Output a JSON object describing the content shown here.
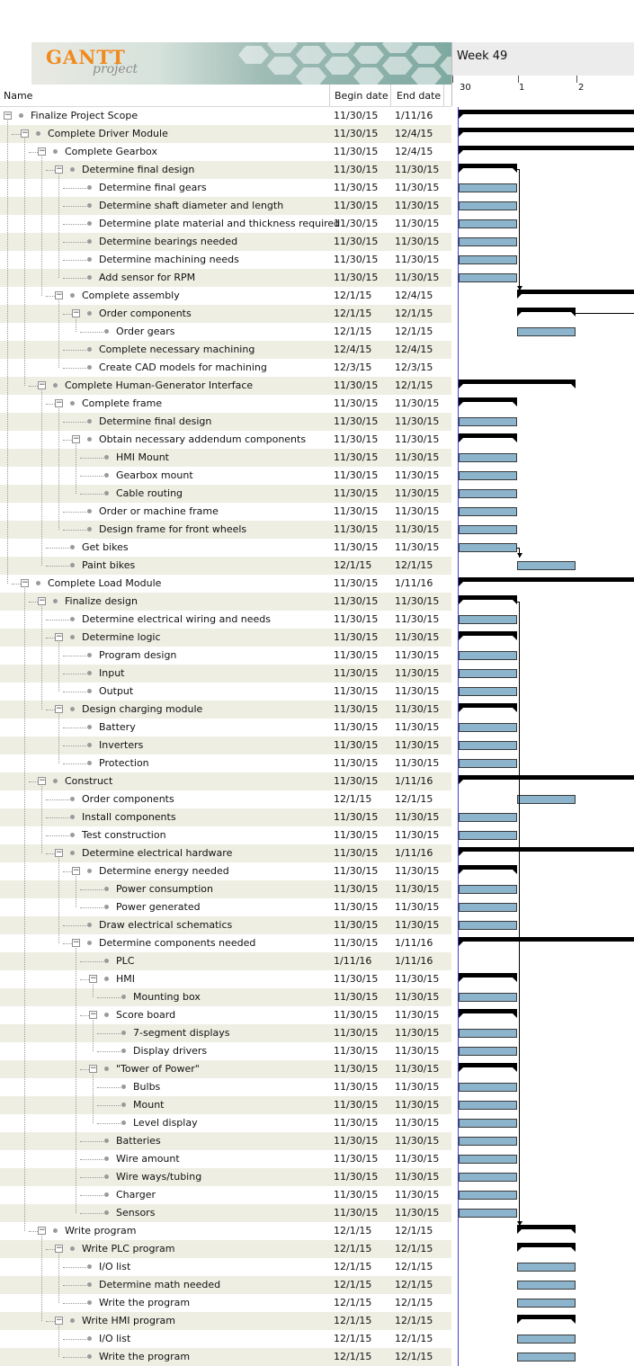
{
  "logo": {
    "brand": "GANTT",
    "sub": "project"
  },
  "columns": {
    "name": "Name",
    "begin": "Begin date",
    "end": "End date"
  },
  "timeline": {
    "week": "Week 49",
    "days": [
      "30",
      "1",
      "2"
    ]
  },
  "tasks": [
    {
      "name": "Finalize Project Scope",
      "begin": "11/30/15",
      "end": "1/11/16",
      "level": 0,
      "summary": true
    },
    {
      "name": "Complete Driver Module",
      "begin": "11/30/15",
      "end": "12/4/15",
      "level": 1,
      "summary": true
    },
    {
      "name": "Complete Gearbox",
      "begin": "11/30/15",
      "end": "12/4/15",
      "level": 2,
      "summary": true
    },
    {
      "name": "Determine final design",
      "begin": "11/30/15",
      "end": "11/30/15",
      "level": 3,
      "summary": true
    },
    {
      "name": "Determine final gears",
      "begin": "11/30/15",
      "end": "11/30/15",
      "level": 4
    },
    {
      "name": "Determine shaft diameter and length",
      "begin": "11/30/15",
      "end": "11/30/15",
      "level": 4
    },
    {
      "name": "Determine plate material and thickness required",
      "begin": "11/30/15",
      "end": "11/30/15",
      "level": 4
    },
    {
      "name": "Determine bearings needed",
      "begin": "11/30/15",
      "end": "11/30/15",
      "level": 4
    },
    {
      "name": "Determine machining needs",
      "begin": "11/30/15",
      "end": "11/30/15",
      "level": 4
    },
    {
      "name": "Add sensor for RPM",
      "begin": "11/30/15",
      "end": "11/30/15",
      "level": 4
    },
    {
      "name": "Complete assembly",
      "begin": "12/1/15",
      "end": "12/4/15",
      "level": 3,
      "summary": true
    },
    {
      "name": "Order components",
      "begin": "12/1/15",
      "end": "12/1/15",
      "level": 4,
      "summary": true
    },
    {
      "name": "Order gears",
      "begin": "12/1/15",
      "end": "12/1/15",
      "level": 5
    },
    {
      "name": "Complete necessary machining",
      "begin": "12/4/15",
      "end": "12/4/15",
      "level": 4
    },
    {
      "name": "Create CAD models for machining",
      "begin": "12/3/15",
      "end": "12/3/15",
      "level": 4
    },
    {
      "name": "Complete Human-Generator Interface",
      "begin": "11/30/15",
      "end": "12/1/15",
      "level": 2,
      "summary": true
    },
    {
      "name": "Complete frame",
      "begin": "11/30/15",
      "end": "11/30/15",
      "level": 3,
      "summary": true
    },
    {
      "name": "Determine final design",
      "begin": "11/30/15",
      "end": "11/30/15",
      "level": 4
    },
    {
      "name": "Obtain necessary addendum components",
      "begin": "11/30/15",
      "end": "11/30/15",
      "level": 4,
      "summary": true
    },
    {
      "name": "HMI Mount",
      "begin": "11/30/15",
      "end": "11/30/15",
      "level": 5
    },
    {
      "name": "Gearbox mount",
      "begin": "11/30/15",
      "end": "11/30/15",
      "level": 5
    },
    {
      "name": "Cable routing",
      "begin": "11/30/15",
      "end": "11/30/15",
      "level": 5
    },
    {
      "name": "Order or machine frame",
      "begin": "11/30/15",
      "end": "11/30/15",
      "level": 4
    },
    {
      "name": "Design frame for front wheels",
      "begin": "11/30/15",
      "end": "11/30/15",
      "level": 4
    },
    {
      "name": "Get bikes",
      "begin": "11/30/15",
      "end": "11/30/15",
      "level": 3
    },
    {
      "name": "Paint bikes",
      "begin": "12/1/15",
      "end": "12/1/15",
      "level": 3
    },
    {
      "name": "Complete Load Module",
      "begin": "11/30/15",
      "end": "1/11/16",
      "level": 1,
      "summary": true
    },
    {
      "name": "Finalize design",
      "begin": "11/30/15",
      "end": "11/30/15",
      "level": 2,
      "summary": true
    },
    {
      "name": "Determine electrical wiring and needs",
      "begin": "11/30/15",
      "end": "11/30/15",
      "level": 3
    },
    {
      "name": "Determine logic",
      "begin": "11/30/15",
      "end": "11/30/15",
      "level": 3,
      "summary": true
    },
    {
      "name": "Program design",
      "begin": "11/30/15",
      "end": "11/30/15",
      "level": 4
    },
    {
      "name": "Input",
      "begin": "11/30/15",
      "end": "11/30/15",
      "level": 4
    },
    {
      "name": "Output",
      "begin": "11/30/15",
      "end": "11/30/15",
      "level": 4
    },
    {
      "name": "Design charging module",
      "begin": "11/30/15",
      "end": "11/30/15",
      "level": 3,
      "summary": true
    },
    {
      "name": "Battery",
      "begin": "11/30/15",
      "end": "11/30/15",
      "level": 4
    },
    {
      "name": "Inverters",
      "begin": "11/30/15",
      "end": "11/30/15",
      "level": 4
    },
    {
      "name": "Protection",
      "begin": "11/30/15",
      "end": "11/30/15",
      "level": 4
    },
    {
      "name": "Construct",
      "begin": "11/30/15",
      "end": "1/11/16",
      "level": 2,
      "summary": true
    },
    {
      "name": "Order components",
      "begin": "12/1/15",
      "end": "12/1/15",
      "level": 3
    },
    {
      "name": "Install components",
      "begin": "11/30/15",
      "end": "11/30/15",
      "level": 3
    },
    {
      "name": "Test construction",
      "begin": "11/30/15",
      "end": "11/30/15",
      "level": 3
    },
    {
      "name": "Determine electrical hardware",
      "begin": "11/30/15",
      "end": "1/11/16",
      "level": 3,
      "summary": true
    },
    {
      "name": "Determine energy needed",
      "begin": "11/30/15",
      "end": "11/30/15",
      "level": 4,
      "summary": true
    },
    {
      "name": "Power consumption",
      "begin": "11/30/15",
      "end": "11/30/15",
      "level": 5
    },
    {
      "name": "Power generated",
      "begin": "11/30/15",
      "end": "11/30/15",
      "level": 5
    },
    {
      "name": "Draw electrical schematics",
      "begin": "11/30/15",
      "end": "11/30/15",
      "level": 4
    },
    {
      "name": "Determine components needed",
      "begin": "11/30/15",
      "end": "1/11/16",
      "level": 4,
      "summary": true
    },
    {
      "name": "PLC",
      "begin": "1/11/16",
      "end": "1/11/16",
      "level": 5
    },
    {
      "name": "HMI",
      "begin": "11/30/15",
      "end": "11/30/15",
      "level": 5,
      "summary": true
    },
    {
      "name": "Mounting box",
      "begin": "11/30/15",
      "end": "11/30/15",
      "level": 6
    },
    {
      "name": "Score board",
      "begin": "11/30/15",
      "end": "11/30/15",
      "level": 5,
      "summary": true
    },
    {
      "name": "7-segment displays",
      "begin": "11/30/15",
      "end": "11/30/15",
      "level": 6
    },
    {
      "name": "Display drivers",
      "begin": "11/30/15",
      "end": "11/30/15",
      "level": 6
    },
    {
      "name": "\"Tower of Power\"",
      "begin": "11/30/15",
      "end": "11/30/15",
      "level": 5,
      "summary": true
    },
    {
      "name": "Bulbs",
      "begin": "11/30/15",
      "end": "11/30/15",
      "level": 6
    },
    {
      "name": "Mount",
      "begin": "11/30/15",
      "end": "11/30/15",
      "level": 6
    },
    {
      "name": "Level display",
      "begin": "11/30/15",
      "end": "11/30/15",
      "level": 6
    },
    {
      "name": "Batteries",
      "begin": "11/30/15",
      "end": "11/30/15",
      "level": 5
    },
    {
      "name": "Wire amount",
      "begin": "11/30/15",
      "end": "11/30/15",
      "level": 5
    },
    {
      "name": "Wire ways/tubing",
      "begin": "11/30/15",
      "end": "11/30/15",
      "level": 5
    },
    {
      "name": "Charger",
      "begin": "11/30/15",
      "end": "11/30/15",
      "level": 5
    },
    {
      "name": "Sensors",
      "begin": "11/30/15",
      "end": "11/30/15",
      "level": 5
    },
    {
      "name": "Write program",
      "begin": "12/1/15",
      "end": "12/1/15",
      "level": 2,
      "summary": true
    },
    {
      "name": "Write PLC program",
      "begin": "12/1/15",
      "end": "12/1/15",
      "level": 3,
      "summary": true
    },
    {
      "name": "I/O list",
      "begin": "12/1/15",
      "end": "12/1/15",
      "level": 4
    },
    {
      "name": "Determine math needed",
      "begin": "12/1/15",
      "end": "12/1/15",
      "level": 4
    },
    {
      "name": "Write the program",
      "begin": "12/1/15",
      "end": "12/1/15",
      "level": 4
    },
    {
      "name": "Write HMI program",
      "begin": "12/1/15",
      "end": "12/1/15",
      "level": 3,
      "summary": true
    },
    {
      "name": "I/O list",
      "begin": "12/1/15",
      "end": "12/1/15",
      "level": 4
    },
    {
      "name": "Write the program",
      "begin": "12/1/15",
      "end": "12/1/15",
      "level": 4
    }
  ]
}
